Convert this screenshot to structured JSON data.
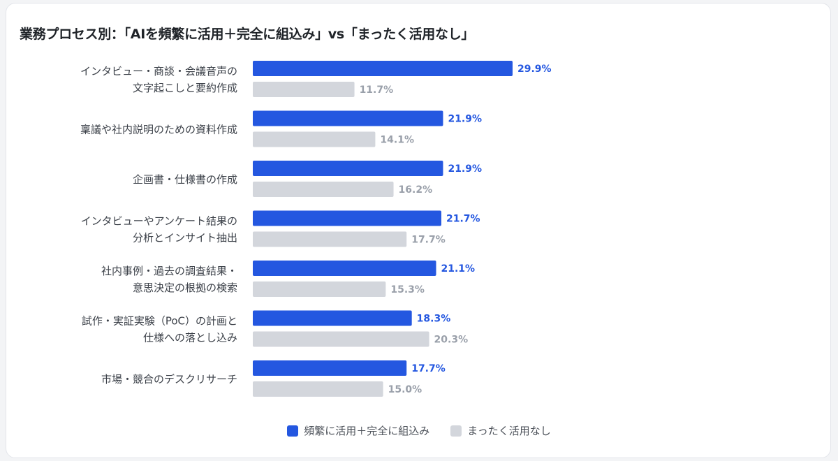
{
  "chart_data": {
    "type": "bar",
    "orientation": "horizontal",
    "title": "業務プロセス別：「AIを頻繁に活用＋完全に組込み」vs「まったく活用なし」",
    "categories": [
      [
        "インタビュー・商談・会議音声の",
        "文字起こしと要約作成"
      ],
      [
        "稟議や社内説明のための資料作成"
      ],
      [
        "企画書・仕様書の作成"
      ],
      [
        "インタビューやアンケート結果の",
        "分析とインサイト抽出"
      ],
      [
        "社内事例・過去の調査結果・",
        "意思決定の根拠の検索"
      ],
      [
        "試作・実証実験（PoC）の計画と",
        "仕様への落とし込み"
      ],
      [
        "市場・競合のデスクリサーチ"
      ]
    ],
    "series": [
      {
        "name": "頻繁に活用＋完全に組込み",
        "color": "#2457e0",
        "values": [
          29.9,
          21.9,
          21.9,
          21.7,
          21.1,
          18.3,
          17.7
        ]
      },
      {
        "name": "まったく活用なし",
        "color": "#d3d6dc",
        "values": [
          11.7,
          14.1,
          16.2,
          17.7,
          15.3,
          20.3,
          15.0
        ]
      }
    ],
    "value_suffix": "%",
    "xlim": [
      0,
      30
    ],
    "grid": false,
    "legend_position": "bottom"
  }
}
